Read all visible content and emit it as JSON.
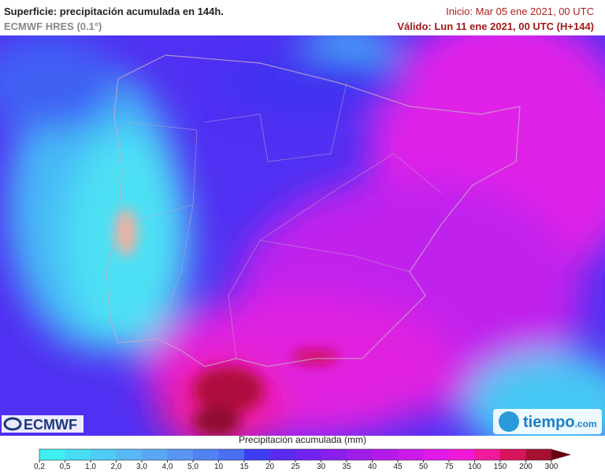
{
  "header": {
    "title": "Superficie: precipitación acumulada en 144h.",
    "model": "ECMWF HRES (0.1°)",
    "init": "Inicio: Mar 05 ene 2021, 00 UTC",
    "valid": "Válido: Lun 11 ene 2021, 00 UTC (H+144)"
  },
  "logos": {
    "left": "ECMWF",
    "right": "tiempo",
    "right_suffix": ".com"
  },
  "legend": {
    "title": "Precipitación acumulada (mm)",
    "ticks": [
      "0,2",
      "0,5",
      "1,0",
      "2,0",
      "3,0",
      "4,0",
      "5,0",
      "10",
      "15",
      "20",
      "25",
      "30",
      "35",
      "40",
      "45",
      "50",
      "75",
      "100",
      "150",
      "200",
      "300"
    ],
    "colors": [
      "#3ff0f2",
      "#46dcf4",
      "#4fcbf5",
      "#57b9f6",
      "#5aa7f6",
      "#5895f5",
      "#5082f4",
      "#4a6ef4",
      "#3c3cf2",
      "#5a2af0",
      "#7222ee",
      "#8a1eec",
      "#a01ceb",
      "#b41aea",
      "#c91ae9",
      "#e01ae8",
      "#f01ad6",
      "#f01a9a",
      "#d8145c",
      "#a81032"
    ],
    "arrow_color": "#6a0014"
  }
}
